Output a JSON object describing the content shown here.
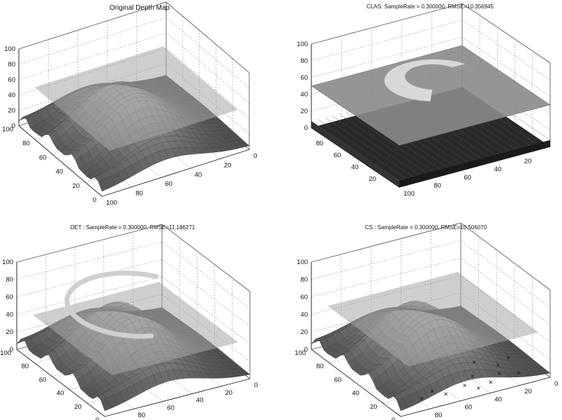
{
  "figure": {
    "panels": [
      {
        "title": "Original Depth Map",
        "title_size": 10,
        "method": "original"
      },
      {
        "title": "CLAS: SampleRate = 0.300000, RMSE=10.356945",
        "title_size": 8,
        "method": "clas"
      },
      {
        "title": "DET : SampleRate = 0.300000, RMSE=11.186271",
        "title_size": 8,
        "method": "det"
      },
      {
        "title": "CS  : SampleRate = 0.300000, RMSE=10.506070",
        "title_size": 8,
        "method": "cs"
      }
    ]
  },
  "chart_data": [
    {
      "type": "scatter",
      "plot_kind": "3d-surface",
      "title": "Original Depth Map",
      "xlim": [
        0,
        100
      ],
      "ylim": [
        0,
        100
      ],
      "zlim": [
        0,
        100
      ],
      "z_ticks": [
        "0",
        "20",
        "40",
        "60",
        "80",
        "100"
      ],
      "y_ticks": [
        "0",
        "20",
        "40",
        "60",
        "80",
        "100"
      ],
      "x_ticks": [
        "100",
        "80",
        "60",
        "40",
        "20",
        "0"
      ],
      "grid": true,
      "series": [
        {
          "values": [
            0,
            20,
            60,
            50,
            30,
            20
          ]
        },
        {
          "values": [
            50,
            50,
            50,
            50,
            50,
            50
          ]
        }
      ]
    },
    {
      "type": "scatter",
      "plot_kind": "3d-surface",
      "title": "CLAS: SampleRate = 0.300000, RMSE=10.356945",
      "xlim": [
        0,
        100
      ],
      "ylim": [
        0,
        100
      ],
      "zlim": [
        0,
        100
      ],
      "z_ticks": [
        "0",
        "20",
        "40",
        "60",
        "80",
        "100"
      ],
      "y_ticks": [
        "20",
        "40",
        "60",
        "80"
      ],
      "x_ticks": [
        "100",
        "80",
        "60",
        "40",
        "20"
      ],
      "grid": true,
      "series": [
        {
          "values": [
            0,
            0,
            0,
            0,
            0
          ]
        },
        {
          "values": [
            50,
            50,
            70,
            60,
            50
          ]
        }
      ]
    },
    {
      "type": "scatter",
      "plot_kind": "3d-surface",
      "title": "DET : SampleRate = 0.300000, RMSE=11.186271",
      "xlim": [
        0,
        100
      ],
      "ylim": [
        0,
        100
      ],
      "zlim": [
        0,
        100
      ],
      "z_ticks": [
        "0",
        "20",
        "40",
        "60",
        "80",
        "100"
      ],
      "y_ticks": [
        "0",
        "20",
        "40",
        "60",
        "80",
        "100"
      ],
      "x_ticks": [
        "100",
        "80",
        "60",
        "40",
        "20",
        "0"
      ],
      "grid": true,
      "series": [
        {
          "values": [
            0,
            20,
            60,
            50,
            30,
            20
          ]
        },
        {
          "values": [
            40,
            40,
            40,
            40,
            40,
            40
          ]
        },
        {
          "values": [
            70,
            70,
            70,
            70,
            70,
            70
          ]
        }
      ]
    },
    {
      "type": "scatter",
      "plot_kind": "3d-surface",
      "title": "CS  : SampleRate = 0.300000, RMSE=10.506070",
      "xlim": [
        0,
        100
      ],
      "ylim": [
        0,
        100
      ],
      "zlim": [
        0,
        100
      ],
      "z_ticks": [
        "0",
        "20",
        "40",
        "60",
        "80",
        "100"
      ],
      "y_ticks": [
        "0",
        "20",
        "40",
        "60",
        "80",
        "100"
      ],
      "x_ticks": [
        "100",
        "80",
        "60",
        "40",
        "20",
        "0"
      ],
      "grid": true,
      "series": [
        {
          "values": [
            0,
            20,
            60,
            50,
            30,
            20
          ]
        },
        {
          "values": [
            50,
            50,
            50,
            50,
            50,
            50
          ]
        }
      ]
    }
  ]
}
